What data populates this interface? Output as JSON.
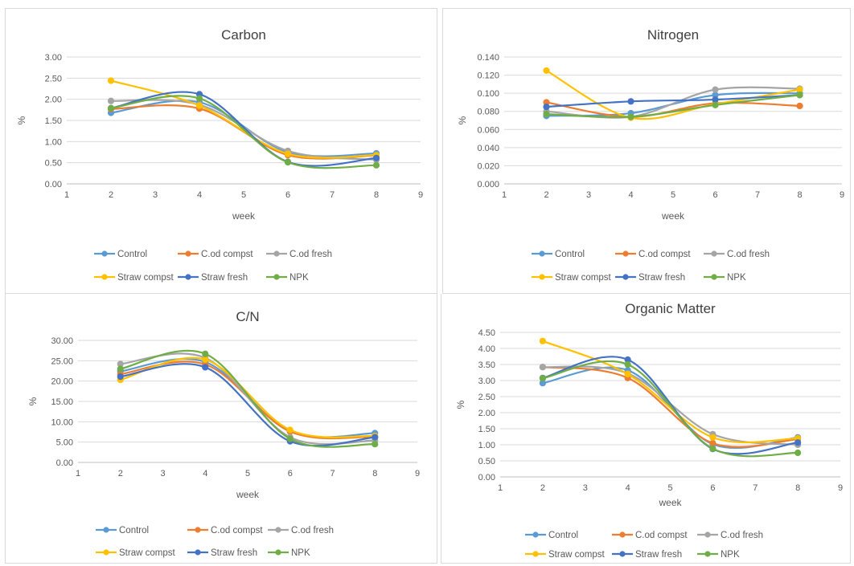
{
  "chart_data": [
    {
      "type": "line",
      "title": "Carbon",
      "xlabel": "week",
      "ylabel": "%",
      "xlim": [
        1,
        9
      ],
      "ylim": [
        0,
        3
      ],
      "x_ticks": [
        "1",
        "2",
        "3",
        "4",
        "5",
        "6",
        "7",
        "8",
        "9"
      ],
      "y_ticks": [
        "0.00",
        "0.50",
        "1.00",
        "1.50",
        "2.00",
        "2.50",
        "3.00"
      ],
      "grid": true,
      "legend_position": "bottom",
      "x": [
        2,
        4,
        6,
        8
      ],
      "series": [
        {
          "name": "Control",
          "color": "#5B9BD5",
          "values": [
            1.68,
            1.93,
            0.75,
            0.72
          ]
        },
        {
          "name": "C.od compst",
          "color": "#ED7D31",
          "values": [
            1.77,
            1.78,
            0.68,
            0.67
          ]
        },
        {
          "name": "C.od fresh",
          "color": "#A5A5A5",
          "values": [
            1.96,
            1.87,
            0.78,
            0.57
          ]
        },
        {
          "name": "Straw compst",
          "color": "#FFC000",
          "values": [
            2.44,
            1.85,
            0.71,
            0.68
          ]
        },
        {
          "name": "Straw fresh",
          "color": "#4472C4",
          "values": [
            1.79,
            2.12,
            0.52,
            0.61
          ]
        },
        {
          "name": "NPK",
          "color": "#70AD47",
          "values": [
            1.79,
            2.02,
            0.51,
            0.44
          ]
        }
      ]
    },
    {
      "type": "line",
      "title": "Nitrogen",
      "xlabel": "week",
      "ylabel": "%",
      "xlim": [
        1,
        9
      ],
      "ylim": [
        0,
        0.14
      ],
      "x_ticks": [
        "1",
        "2",
        "3",
        "4",
        "5",
        "6",
        "7",
        "8",
        "9"
      ],
      "y_ticks": [
        "0.000",
        "0.020",
        "0.040",
        "0.060",
        "0.080",
        "0.100",
        "0.120",
        "0.140"
      ],
      "grid": true,
      "legend_position": "bottom",
      "x": [
        2,
        4,
        6,
        8
      ],
      "series": [
        {
          "name": "Control",
          "color": "#5B9BD5",
          "values": [
            0.075,
            0.078,
            0.098,
            0.1
          ]
        },
        {
          "name": "C.od compst",
          "color": "#ED7D31",
          "values": [
            0.09,
            0.074,
            0.089,
            0.086
          ]
        },
        {
          "name": "C.od fresh",
          "color": "#A5A5A5",
          "values": [
            0.08,
            0.074,
            0.104,
            0.105
          ]
        },
        {
          "name": "Straw compst",
          "color": "#FFC000",
          "values": [
            0.125,
            0.073,
            0.088,
            0.104
          ]
        },
        {
          "name": "Straw fresh",
          "color": "#4472C4",
          "values": [
            0.085,
            0.091,
            0.093,
            0.098
          ]
        },
        {
          "name": "NPK",
          "color": "#70AD47",
          "values": [
            0.077,
            0.074,
            0.087,
            0.098
          ]
        }
      ]
    },
    {
      "type": "line",
      "title": "C/N",
      "xlabel": "week",
      "ylabel": "%",
      "xlim": [
        1,
        9
      ],
      "ylim": [
        0,
        30
      ],
      "x_ticks": [
        "1",
        "2",
        "3",
        "4",
        "5",
        "6",
        "7",
        "8",
        "9"
      ],
      "y_ticks": [
        "0.00",
        "5.00",
        "10.00",
        "15.00",
        "20.00",
        "25.00",
        "30.00"
      ],
      "grid": true,
      "legend_position": "bottom",
      "x": [
        2,
        4,
        6,
        8
      ],
      "series": [
        {
          "name": "Control",
          "color": "#5B9BD5",
          "values": [
            22.4,
            24.7,
            7.6,
            7.2
          ]
        },
        {
          "name": "C.od compst",
          "color": "#ED7D31",
          "values": [
            21.7,
            24.1,
            7.6,
            6.3
          ]
        },
        {
          "name": "C.od fresh",
          "color": "#A5A5A5",
          "values": [
            24.2,
            25.7,
            6.2,
            5.4
          ]
        },
        {
          "name": "Straw compst",
          "color": "#FFC000",
          "values": [
            20.3,
            25.3,
            8.0,
            6.5
          ]
        },
        {
          "name": "Straw fresh",
          "color": "#4472C4",
          "values": [
            21.1,
            23.4,
            5.2,
            6.2
          ]
        },
        {
          "name": "NPK",
          "color": "#70AD47",
          "values": [
            23.0,
            26.7,
            5.8,
            4.5
          ]
        }
      ]
    },
    {
      "type": "line",
      "title": "Organic Matter",
      "xlabel": "week",
      "ylabel": "%",
      "xlim": [
        1,
        9
      ],
      "ylim": [
        0,
        4.5
      ],
      "x_ticks": [
        "1",
        "2",
        "3",
        "4",
        "5",
        "6",
        "7",
        "8",
        "9"
      ],
      "y_ticks": [
        "0.00",
        "0.50",
        "1.00",
        "1.50",
        "2.00",
        "2.50",
        "3.00",
        "3.50",
        "4.00",
        "4.50"
      ],
      "grid": true,
      "legend_position": "bottom",
      "x": [
        2,
        4,
        6,
        8
      ],
      "series": [
        {
          "name": "Control",
          "color": "#5B9BD5",
          "values": [
            2.92,
            3.32,
            1.02,
            1.23
          ]
        },
        {
          "name": "C.od compst",
          "color": "#ED7D31",
          "values": [
            3.42,
            3.08,
            1.05,
            1.17
          ]
        },
        {
          "name": "C.od fresh",
          "color": "#A5A5A5",
          "values": [
            3.42,
            3.22,
            1.33,
            1.0
          ]
        },
        {
          "name": "Straw compst",
          "color": "#FFC000",
          "values": [
            4.23,
            3.2,
            1.23,
            1.2
          ]
        },
        {
          "name": "Straw fresh",
          "color": "#4472C4",
          "values": [
            3.08,
            3.65,
            0.87,
            1.07
          ]
        },
        {
          "name": "NPK",
          "color": "#70AD47",
          "values": [
            3.07,
            3.5,
            0.88,
            0.75
          ]
        }
      ]
    }
  ]
}
